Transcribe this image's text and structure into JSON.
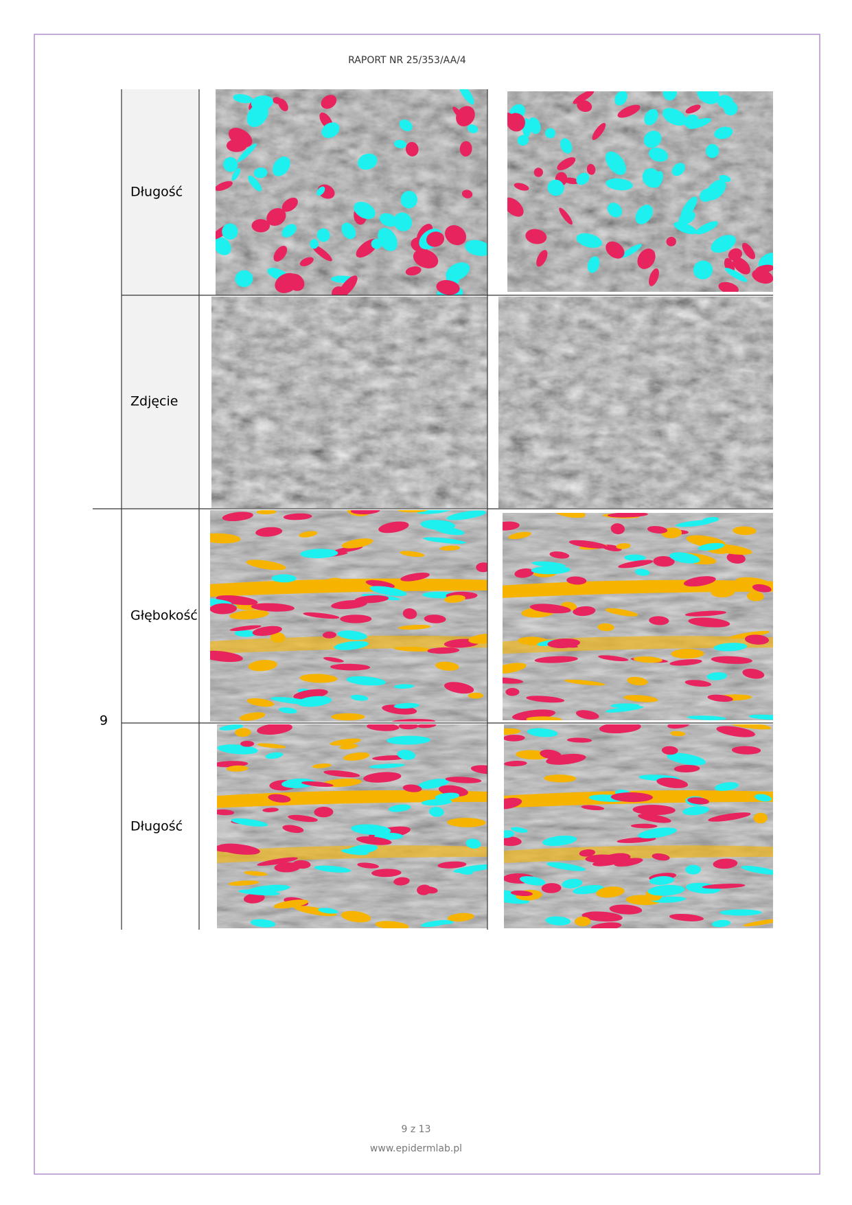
{
  "header": {
    "title": "RAPORT NR 25/353/AA/4"
  },
  "table": {
    "group": "9",
    "rows": [
      {
        "label": "Długość"
      },
      {
        "label": "Zdjęcie"
      },
      {
        "label": "Głębokość"
      },
      {
        "label": "Długość"
      }
    ]
  },
  "footer": {
    "page": "9 z 13",
    "website": "www.epidermlab.pl"
  }
}
